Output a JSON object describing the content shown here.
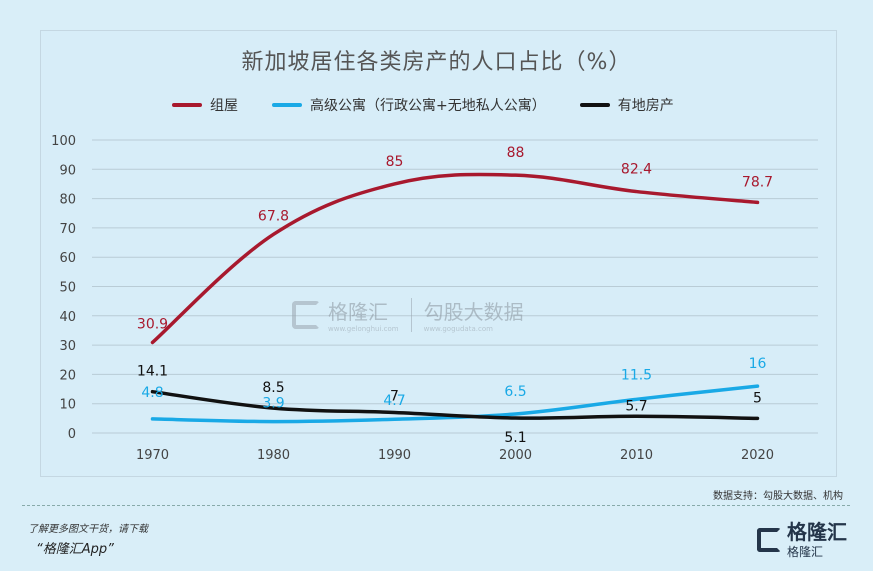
{
  "chart_data": {
    "type": "line",
    "title": "新加坡居住各类房产的人口占比（%）",
    "categories": [
      "1970",
      "1980",
      "1990",
      "2000",
      "2010",
      "2020"
    ],
    "ylim": [
      0,
      100
    ],
    "yticks": [
      "0",
      "10",
      "20",
      "30",
      "40",
      "50",
      "60",
      "70",
      "80",
      "90",
      "100"
    ],
    "grid": true,
    "legend_position": "top",
    "series": [
      {
        "name": "组屋",
        "color": "#a8192e",
        "values": [
          30.9,
          67.8,
          85,
          88,
          82.4,
          78.7
        ],
        "labels": [
          "30.9",
          "67.8",
          "85",
          "88",
          "82.4",
          "78.7"
        ]
      },
      {
        "name": "高级公寓（行政公寓+无地私人公寓）",
        "color": "#19a9e6",
        "values": [
          4.8,
          3.9,
          4.7,
          6.5,
          11.5,
          16
        ],
        "labels": [
          "4.8",
          "3.9",
          "4.7",
          "6.5",
          "11.5",
          "16"
        ]
      },
      {
        "name": "有地房产",
        "color": "#111111",
        "values": [
          14.1,
          8.5,
          7,
          5.1,
          5.7,
          5
        ],
        "labels": [
          "14.1",
          "8.5",
          "7",
          "5.1",
          "5.7",
          "5"
        ]
      }
    ]
  },
  "watermark": {
    "brand": "格隆汇",
    "brand_url": "www.gelonghui.com",
    "gogu": "勾股大数据",
    "gogu_url": "www.gogudata.com"
  },
  "footer": {
    "source": "数据支持：勾股大数据、机构",
    "promo_line1": "了解更多图文干货，请下载",
    "promo_line2": "“格隆汇App”",
    "brand_name": "格隆汇",
    "brand_sub": "格隆汇"
  }
}
